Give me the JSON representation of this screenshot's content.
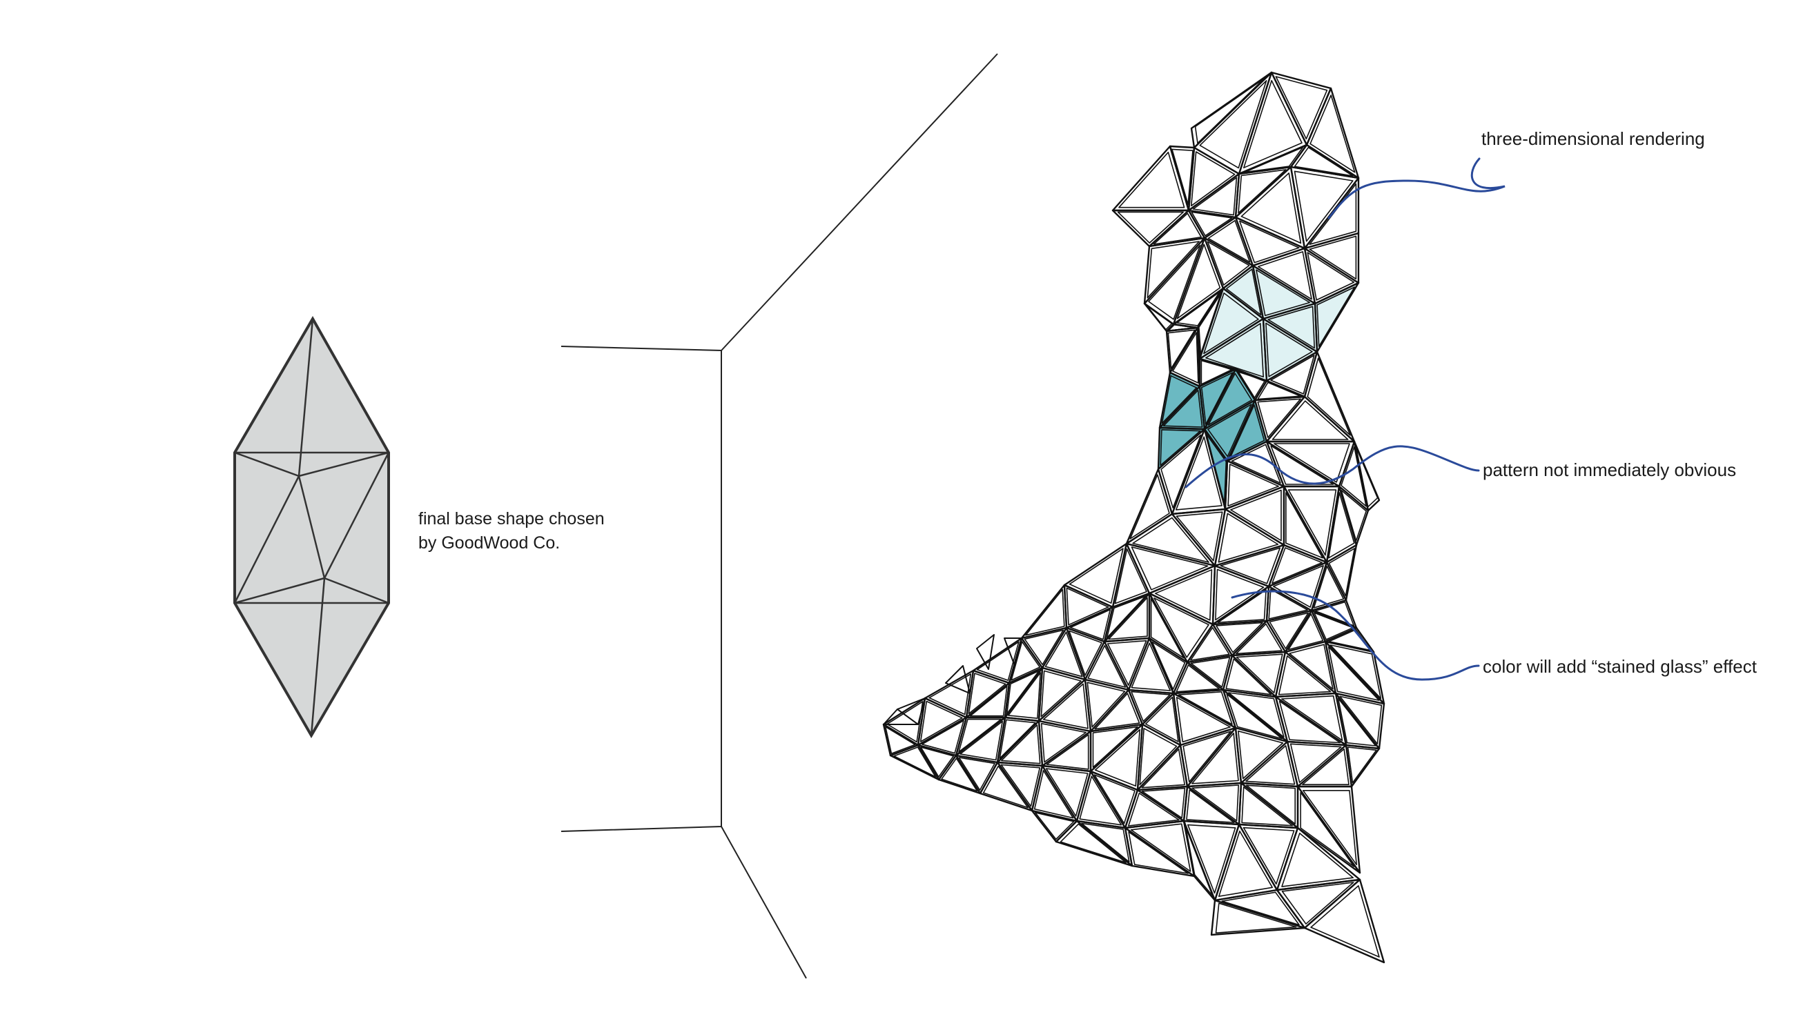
{
  "base_shape": {
    "caption_line1": "final base shape chosen",
    "caption_line2": "by GoodWood  Co.",
    "fill_color": "#d6d8d8"
  },
  "callouts": [
    {
      "id": "three-dimensional-rendering",
      "text": "three-dimensional rendering"
    },
    {
      "id": "pattern-not-obvious",
      "text": "pattern not immediately obvious"
    },
    {
      "id": "stained-glass",
      "text": "color will add “stained glass” effect"
    }
  ],
  "colors": {
    "light_teal": "#dff2f3",
    "dark_teal": "#6bb9c2",
    "callout_line": "#2a4a9a",
    "mesh_line": "#111111"
  }
}
